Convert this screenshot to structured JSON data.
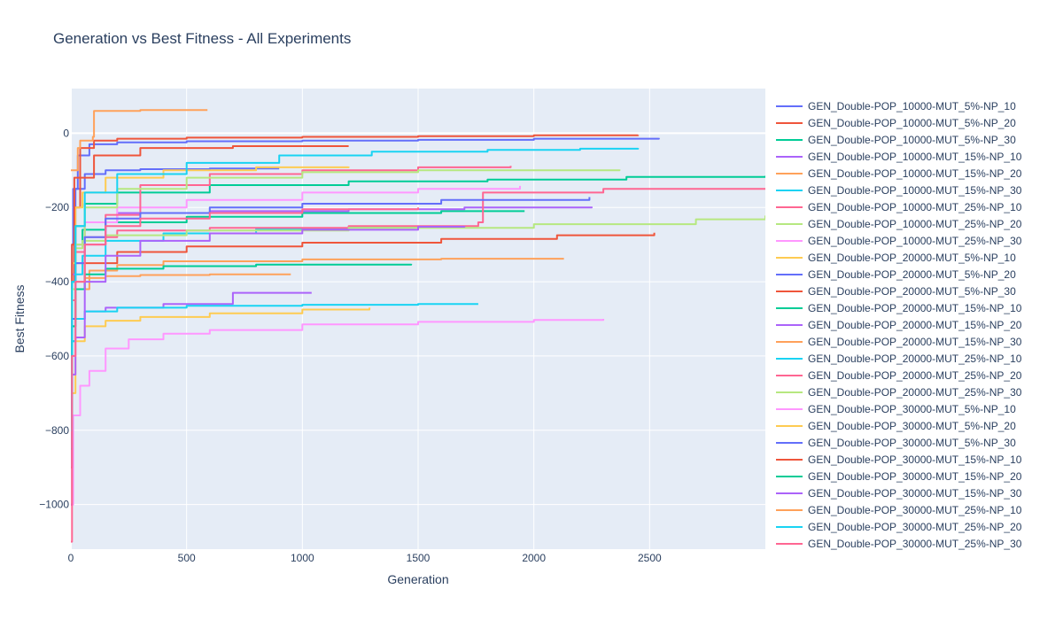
{
  "chart_data": {
    "type": "line",
    "title": "Generation vs Best Fitness - All Experiments",
    "xlabel": "Generation",
    "ylabel": "Best Fitness",
    "xlim": [
      0,
      3000
    ],
    "ylim": [
      -1120,
      120
    ],
    "xticks": [
      0,
      500,
      1000,
      1500,
      2000,
      2500
    ],
    "yticks": [
      0,
      -200,
      -400,
      -600,
      -800,
      -1000
    ],
    "xtick_labels": [
      "0",
      "500",
      "1000",
      "1500",
      "2000",
      "2500"
    ],
    "ytick_labels": [
      "0",
      "−200",
      "−400",
      "−600",
      "−800",
      "−1000"
    ],
    "grid": true,
    "legend_position": "right",
    "background": "#e5ecf6",
    "series": [
      {
        "name": "GEN_Double-POP_10000-MUT_5%-NP_10",
        "color": "#636efa",
        "x": [
          0,
          5,
          20,
          60,
          150,
          300,
          600,
          900
        ],
        "y": [
          -700,
          -300,
          -150,
          -110,
          -100,
          -97,
          -95,
          -95
        ]
      },
      {
        "name": "GEN_Double-POP_10000-MUT_5%-NP_20",
        "color": "#ef553b",
        "x": [
          0,
          5,
          15,
          40,
          100,
          300,
          700,
          1200
        ],
        "y": [
          -800,
          -400,
          -200,
          -120,
          -60,
          -40,
          -35,
          -35
        ]
      },
      {
        "name": "GEN_Double-POP_10000-MUT_5%-NP_30",
        "color": "#00cc96",
        "x": [
          0,
          5,
          20,
          50,
          150,
          500,
          1000,
          1600,
          1960
        ],
        "y": [
          -650,
          -400,
          -300,
          -260,
          -240,
          -225,
          -215,
          -210,
          -210
        ]
      },
      {
        "name": "GEN_Double-POP_10000-MUT_15%-NP_10",
        "color": "#ab63fa",
        "x": [
          0,
          5,
          20,
          60,
          200,
          600,
          1200,
          1700,
          2250
        ],
        "y": [
          -700,
          -380,
          -300,
          -240,
          -215,
          -210,
          -205,
          -200,
          -198
        ]
      },
      {
        "name": "GEN_Double-POP_10000-MUT_15%-NP_20",
        "color": "#ffa15a",
        "x": [
          0,
          5,
          20,
          80,
          200,
          400,
          1000,
          1600,
          2130
        ],
        "y": [
          -750,
          -500,
          -420,
          -370,
          -355,
          -345,
          -340,
          -338,
          -338
        ]
      },
      {
        "name": "GEN_Double-POP_10000-MUT_15%-NP_30",
        "color": "#19d3f3",
        "x": [
          0,
          5,
          20,
          50,
          150,
          400,
          800,
          1200,
          1530
        ],
        "y": [
          -700,
          -450,
          -380,
          -330,
          -290,
          -270,
          -258,
          -252,
          -250
        ]
      },
      {
        "name": "GEN_Double-POP_10000-MUT_25%-NP_10",
        "color": "#ff6692",
        "x": [
          0,
          5,
          20,
          60,
          200,
          600,
          1200,
          1760,
          1780,
          2300,
          3000
        ],
        "y": [
          -650,
          -420,
          -320,
          -280,
          -262,
          -255,
          -250,
          -240,
          -160,
          -150,
          -150
        ]
      },
      {
        "name": "GEN_Double-POP_10000-MUT_25%-NP_20",
        "color": "#b6e880",
        "x": [
          0,
          5,
          20,
          50,
          150,
          500,
          1200,
          2000,
          2700,
          3000
        ],
        "y": [
          -600,
          -400,
          -310,
          -290,
          -275,
          -262,
          -255,
          -245,
          -232,
          -222
        ]
      },
      {
        "name": "GEN_Double-POP_10000-MUT_25%-NP_30",
        "color": "#ff97ff",
        "x": [
          0,
          5,
          20,
          60,
          200,
          500,
          1000,
          1500,
          1940
        ],
        "y": [
          -700,
          -420,
          -300,
          -240,
          -200,
          -180,
          -160,
          -150,
          -142
        ]
      },
      {
        "name": "GEN_Double-POP_20000-MUT_5%-NP_10",
        "color": "#fecb52",
        "x": [
          0,
          5,
          20,
          50,
          150,
          400,
          800,
          1200
        ],
        "y": [
          -700,
          -350,
          -200,
          -160,
          -120,
          -100,
          -92,
          -90
        ]
      },
      {
        "name": "GEN_Double-POP_20000-MUT_5%-NP_20",
        "color": "#636efa",
        "x": [
          0,
          5,
          10,
          30,
          80,
          200,
          500,
          1000,
          1500,
          2000,
          2540
        ],
        "y": [
          -700,
          -300,
          -150,
          -60,
          -30,
          -25,
          -22,
          -20,
          -18,
          -15,
          -13
        ]
      },
      {
        "name": "GEN_Double-POP_20000-MUT_5%-NP_30",
        "color": "#ef553b",
        "x": [
          0,
          5,
          15,
          40,
          100,
          200,
          500,
          1000,
          1500,
          2000,
          2450
        ],
        "y": [
          -800,
          -300,
          -120,
          -40,
          -20,
          -15,
          -12,
          -10,
          -8,
          -6,
          -5
        ]
      },
      {
        "name": "GEN_Double-POP_20000-MUT_15%-NP_10",
        "color": "#00cc96",
        "x": [
          0,
          5,
          20,
          60,
          200,
          600,
          1200,
          1800,
          2400,
          3000
        ],
        "y": [
          -700,
          -400,
          -250,
          -190,
          -160,
          -140,
          -130,
          -125,
          -118,
          -115
        ]
      },
      {
        "name": "GEN_Double-POP_20000-MUT_15%-NP_20",
        "color": "#ab63fa",
        "x": [
          0,
          5,
          20,
          60,
          150,
          400,
          700,
          1040
        ],
        "y": [
          -750,
          -560,
          -500,
          -480,
          -470,
          -460,
          -430,
          -430
        ]
      },
      {
        "name": "GEN_Double-POP_20000-MUT_15%-NP_30",
        "color": "#ffa15a",
        "x": [
          0,
          5,
          20,
          60,
          150,
          300,
          600,
          950
        ],
        "y": [
          -700,
          -450,
          -400,
          -390,
          -385,
          -382,
          -380,
          -380
        ]
      },
      {
        "name": "GEN_Double-POP_20000-MUT_25%-NP_10",
        "color": "#19d3f3",
        "x": [
          0,
          5,
          20,
          60,
          200,
          500,
          1000,
          1500,
          1760
        ],
        "y": [
          -750,
          -560,
          -500,
          -480,
          -470,
          -465,
          -462,
          -460,
          -460
        ]
      },
      {
        "name": "GEN_Double-POP_20000-MUT_25%-NP_20",
        "color": "#ff6692",
        "x": [
          0,
          5,
          20,
          60,
          150,
          300,
          600,
          1000,
          1500,
          1900
        ],
        "y": [
          -700,
          -450,
          -350,
          -300,
          -220,
          -140,
          -110,
          -100,
          -92,
          -88
        ]
      },
      {
        "name": "GEN_Double-POP_20000-MUT_25%-NP_30",
        "color": "#b6e880",
        "x": [
          0,
          5,
          20,
          60,
          200,
          500,
          1000,
          1500,
          2370
        ],
        "y": [
          -650,
          -420,
          -300,
          -200,
          -150,
          -120,
          -105,
          -100,
          -98
        ]
      },
      {
        "name": "GEN_Double-POP_30000-MUT_5%-NP_10",
        "color": "#ff97ff",
        "x": [
          0,
          10,
          40,
          80,
          150,
          250,
          400,
          600,
          1000,
          1500,
          2000,
          2300
        ],
        "y": [
          -1000,
          -760,
          -680,
          -640,
          -580,
          -555,
          -540,
          -530,
          -515,
          -508,
          -503,
          -500
        ]
      },
      {
        "name": "GEN_Double-POP_30000-MUT_5%-NP_20",
        "color": "#fecb52",
        "x": [
          0,
          5,
          20,
          60,
          150,
          300,
          600,
          1000,
          1290
        ],
        "y": [
          -1000,
          -700,
          -560,
          -520,
          -505,
          -495,
          -485,
          -475,
          -470
        ]
      },
      {
        "name": "GEN_Double-POP_30000-MUT_5%-NP_30",
        "color": "#636efa",
        "x": [
          0,
          5,
          20,
          60,
          150,
          300,
          600,
          1000,
          1600,
          2240
        ],
        "y": [
          -900,
          -500,
          -350,
          -280,
          -230,
          -215,
          -200,
          -190,
          -180,
          -172
        ]
      },
      {
        "name": "GEN_Double-POP_30000-MUT_15%-NP_10",
        "color": "#ef553b",
        "x": [
          0,
          5,
          20,
          60,
          200,
          500,
          1000,
          1600,
          2100,
          2520
        ],
        "y": [
          -900,
          -520,
          -420,
          -350,
          -320,
          -305,
          -295,
          -285,
          -275,
          -268
        ]
      },
      {
        "name": "GEN_Double-POP_30000-MUT_15%-NP_20",
        "color": "#00cc96",
        "x": [
          0,
          5,
          20,
          60,
          150,
          400,
          800,
          1470
        ],
        "y": [
          -850,
          -520,
          -420,
          -380,
          -365,
          -358,
          -354,
          -352
        ]
      },
      {
        "name": "GEN_Double-POP_30000-MUT_15%-NP_30",
        "color": "#ab63fa",
        "x": [
          0,
          5,
          20,
          60,
          150,
          300,
          600,
          1000,
          1500,
          1700
        ],
        "y": [
          -1000,
          -650,
          -550,
          -400,
          -330,
          -290,
          -270,
          -260,
          -252,
          -250
        ]
      },
      {
        "name": "GEN_Double-POP_30000-MUT_25%-NP_10",
        "color": "#ffa15a",
        "x": [
          0,
          30,
          40,
          95,
          100,
          300,
          590
        ],
        "y": [
          -100,
          -40,
          -20,
          -10,
          60,
          62,
          62
        ]
      },
      {
        "name": "GEN_Double-POP_30000-MUT_25%-NP_20",
        "color": "#19d3f3",
        "x": [
          0,
          5,
          20,
          60,
          200,
          500,
          900,
          1300,
          1800,
          2200,
          2450
        ],
        "y": [
          -800,
          -400,
          -250,
          -160,
          -110,
          -80,
          -60,
          -50,
          -45,
          -42,
          -40
        ]
      },
      {
        "name": "GEN_Double-POP_30000-MUT_25%-NP_30",
        "color": "#ff6692",
        "x": [
          0,
          5,
          20,
          60,
          150,
          300,
          600,
          1000,
          1500
        ],
        "y": [
          -1100,
          -600,
          -400,
          -300,
          -250,
          -230,
          -215,
          -205,
          -200
        ]
      }
    ]
  }
}
